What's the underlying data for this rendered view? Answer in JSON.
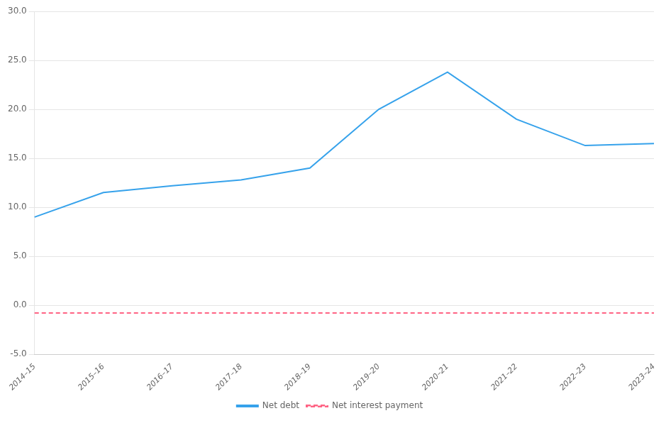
{
  "chart_data": {
    "type": "line",
    "categories": [
      "2014–15",
      "2015–16",
      "2016–17",
      "2017–18",
      "2018–19",
      "2019–20",
      "2020–21",
      "2021–22",
      "2022–23",
      "2023–24"
    ],
    "series": [
      {
        "name": "Net debt",
        "line_style": "solid",
        "values": [
          9.0,
          11.5,
          12.2,
          12.8,
          14.0,
          20.0,
          23.8,
          19.0,
          16.3,
          16.5
        ]
      },
      {
        "name": "Net interest payment",
        "line_style": "dashed",
        "values": [
          -0.8,
          -0.8,
          -0.8,
          -0.8,
          -0.8,
          -0.8,
          -0.8,
          -0.8,
          -0.8,
          -0.8
        ]
      }
    ],
    "ylim": [
      -5.0,
      30.0
    ],
    "yticks": [
      {
        "value": -5.0,
        "label": "-5.0"
      },
      {
        "value": 0.0,
        "label": "0.0"
      },
      {
        "value": 5.0,
        "label": "5.0"
      },
      {
        "value": 10.0,
        "label": "10.0"
      },
      {
        "value": 15.0,
        "label": "15.0"
      },
      {
        "value": 20.0,
        "label": "20.0"
      },
      {
        "value": 25.0,
        "label": "25.0"
      },
      {
        "value": 30.0,
        "label": "30.0"
      }
    ],
    "grid": "y",
    "legend": "bottom"
  }
}
